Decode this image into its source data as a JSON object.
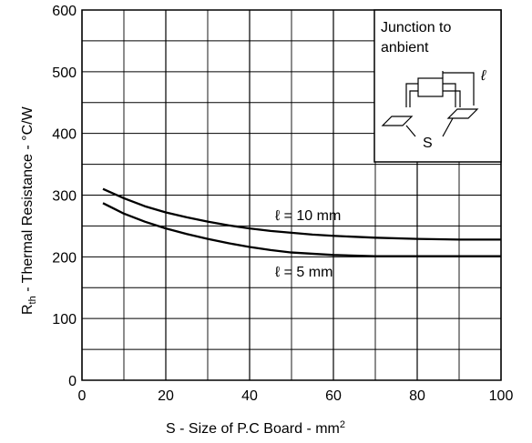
{
  "chart_data": {
    "type": "line",
    "title": "",
    "xlabel": {
      "prefix": "S - ",
      "text": "Size of P.C Board - mm",
      "sup": "2"
    },
    "ylabel": {
      "main": "R",
      "sub": "th",
      "text": " - Thermal Resistance - °C/W"
    },
    "xlim": [
      0,
      100
    ],
    "ylim": [
      0,
      600
    ],
    "grid": true,
    "x_ticks": [
      0,
      20,
      40,
      60,
      80,
      100
    ],
    "x_tick_labels": [
      "0",
      "20",
      "40",
      "60",
      "80",
      "100"
    ],
    "y_ticks": [
      0,
      100,
      200,
      300,
      400,
      500,
      600
    ],
    "y_tick_labels": [
      "0",
      "100",
      "200",
      "300",
      "400",
      "500",
      "600"
    ],
    "series": [
      {
        "name": "ℓ = 10 mm",
        "x": [
          5,
          10,
          15,
          20,
          25,
          30,
          35,
          40,
          45,
          50,
          55,
          60,
          70,
          80,
          90,
          100
        ],
        "y": [
          310,
          295,
          282,
          272,
          264,
          257,
          251,
          246,
          242,
          239,
          236,
          234,
          231,
          229,
          228,
          228
        ]
      },
      {
        "name": "ℓ = 5 mm",
        "x": [
          5,
          10,
          15,
          20,
          25,
          30,
          35,
          40,
          45,
          50,
          55,
          60,
          70,
          80,
          90,
          100
        ],
        "y": [
          287,
          270,
          257,
          246,
          237,
          229,
          222,
          216,
          211,
          207,
          205,
          203,
          201,
          201,
          201,
          201
        ]
      }
    ],
    "inset": {
      "title_line1": "Junction to",
      "title_line2": "anbient",
      "dim_label": "ℓ",
      "area_label": "S"
    }
  }
}
